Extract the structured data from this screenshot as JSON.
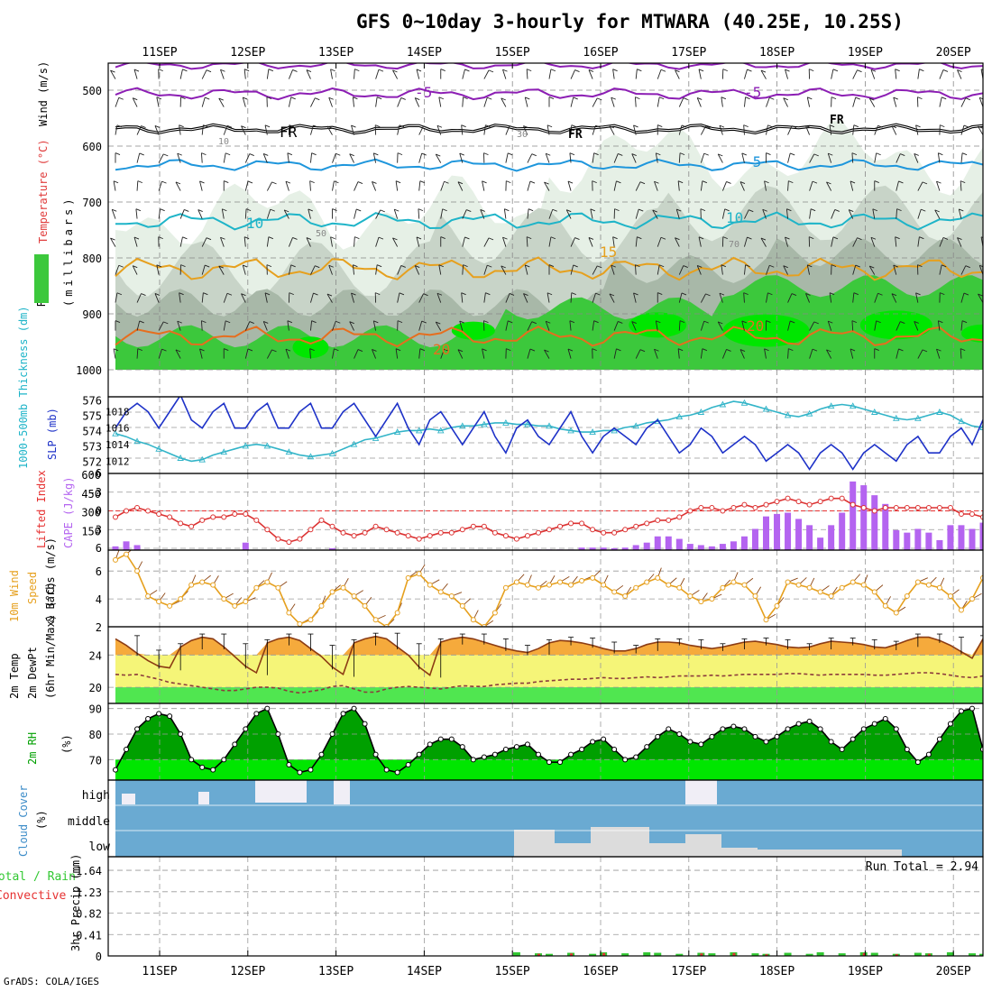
{
  "title": "GFS 0~10day 3-hourly for MTWARA (40.25E, 10.25S)",
  "footer": "GrADS: COLA/IGES",
  "chart_data": {
    "type": "meteogram",
    "x": [
      "11SEP",
      "12SEP",
      "13SEP",
      "14SEP",
      "15SEP",
      "16SEP",
      "17SEP",
      "18SEP",
      "19SEP",
      "20SEP"
    ],
    "panels": [
      {
        "id": "upper_air",
        "ylabels": [
          "RH (%)",
          "Temperature (°C)",
          "Wind (m/s)",
          "(millibars)"
        ],
        "ylim": [
          1000,
          450
        ],
        "yticks": [
          500,
          600,
          700,
          800,
          900,
          1000
        ],
        "isotherm_labels": [
          "-5",
          "FR",
          "-5",
          "10",
          "15",
          "20"
        ],
        "rh_contour_labels": [
          "10",
          "30",
          "50",
          "70"
        ],
        "colors": {
          "rh70": "#3cc83c",
          "rh90": "#00e600",
          "minus5": "#8c1eb4",
          "zero": "#000000",
          "five": "#1e96dc",
          "ten": "#1eb4c8",
          "fifteen": "#e6a01e",
          "twenty": "#e66e1e"
        }
      },
      {
        "id": "thickness_slp",
        "ylabels": [
          "1000-500mb Thickness (dm)",
          "SLP (mb)"
        ],
        "left_ylim": [
          571,
          576
        ],
        "left_yticks": [
          572,
          573,
          574,
          575,
          576
        ],
        "right_ylim": [
          1010,
          1020
        ],
        "right_yticks": [
          1012,
          1014,
          1016,
          1018
        ],
        "slp": [
          1016,
          1018,
          1019,
          1018,
          1016,
          1018,
          1020,
          1017,
          1016,
          1018,
          1019,
          1016,
          1016,
          1018,
          1019,
          1016,
          1016,
          1018,
          1019,
          1016,
          1016,
          1018,
          1019,
          1017,
          1015,
          1017,
          1019,
          1016,
          1014,
          1017,
          1018,
          1016,
          1014,
          1016,
          1018,
          1015,
          1013,
          1016,
          1017,
          1015,
          1014,
          1016,
          1018,
          1015,
          1013,
          1015,
          1016,
          1015,
          1014,
          1016,
          1017,
          1015,
          1013,
          1014,
          1016,
          1015,
          1013,
          1014,
          1015,
          1014,
          1012,
          1013,
          1014,
          1013,
          1011,
          1013,
          1014,
          1013,
          1011,
          1013,
          1014,
          1013,
          1012,
          1014,
          1015,
          1013,
          1013,
          1015,
          1016,
          1014,
          1017
        ],
        "thickness": [
          573.8,
          573.6,
          573.3,
          573.1,
          572.8,
          572.5,
          572.2,
          572.0,
          572.1,
          572.4,
          572.6,
          572.8,
          573.0,
          573.1,
          573.0,
          572.8,
          572.6,
          572.4,
          572.3,
          572.4,
          572.5,
          572.8,
          573.1,
          573.4,
          573.5,
          573.7,
          573.9,
          574.0,
          574.0,
          574.1,
          574.0,
          574.2,
          574.3,
          574.3,
          574.4,
          574.5,
          574.5,
          574.4,
          574.4,
          574.3,
          574.3,
          574.1,
          574.0,
          573.9,
          573.9,
          574.0,
          574.0,
          574.2,
          574.3,
          574.5,
          574.6,
          574.7,
          574.9,
          575.0,
          575.2,
          575.5,
          575.7,
          575.9,
          575.8,
          575.6,
          575.4,
          575.2,
          575.0,
          574.9,
          575.1,
          575.4,
          575.6,
          575.7,
          575.6,
          575.4,
          575.2,
          575.0,
          574.8,
          574.7,
          574.8,
          575.0,
          575.2,
          575.0,
          574.6,
          574.3,
          574.2
        ],
        "colors": {
          "slp": "#1e32c8",
          "thickness": "#32b4c8"
        }
      },
      {
        "id": "li_cape",
        "ylabels": [
          "Lifted Index",
          "CAPE (J/kg)"
        ],
        "left_ylim": [
          6,
          -6
        ],
        "left_yticks": [
          6,
          3,
          0,
          -3,
          -6
        ],
        "right_ylim": [
          0,
          600
        ],
        "right_yticks": [
          150,
          300,
          450,
          600
        ],
        "lifted_index": [
          1.0,
          0.0,
          -0.5,
          0.0,
          0.5,
          1.0,
          2.0,
          2.5,
          1.5,
          1.0,
          1.0,
          0.5,
          0.5,
          1.5,
          3.0,
          4.5,
          5.0,
          4.5,
          3.0,
          1.5,
          2.5,
          3.5,
          4.0,
          3.5,
          2.5,
          3.0,
          3.5,
          4.0,
          4.5,
          4.0,
          3.5,
          3.5,
          3.0,
          2.5,
          2.5,
          3.5,
          4.0,
          4.5,
          4.0,
          3.5,
          3.0,
          2.5,
          2.0,
          2.0,
          3.0,
          3.5,
          3.5,
          3.0,
          2.5,
          2.0,
          1.5,
          1.5,
          1.0,
          0.0,
          -0.5,
          -0.5,
          0.0,
          -0.5,
          -1.0,
          -0.5,
          -1.0,
          -1.5,
          -2.0,
          -1.5,
          -1.0,
          -1.5,
          -2.0,
          -2.0,
          -1.0,
          -0.5,
          0.0,
          -0.5,
          -0.5,
          -0.5,
          -0.5,
          -0.5,
          -0.5,
          -0.5,
          0.5,
          0.5,
          1.0
        ],
        "cape": [
          30,
          70,
          40,
          0,
          0,
          0,
          0,
          0,
          0,
          0,
          0,
          0,
          60,
          0,
          0,
          0,
          0,
          0,
          0,
          0,
          15,
          0,
          0,
          0,
          0,
          0,
          0,
          0,
          0,
          0,
          0,
          0,
          0,
          0,
          0,
          0,
          0,
          0,
          0,
          5,
          5,
          5,
          5,
          20,
          20,
          20,
          15,
          20,
          40,
          60,
          110,
          110,
          90,
          50,
          40,
          30,
          50,
          70,
          110,
          170,
          270,
          290,
          300,
          250,
          200,
          100,
          200,
          300,
          550,
          520,
          440,
          370,
          160,
          140,
          170,
          140,
          80,
          200,
          200,
          170,
          220
        ],
        "colors": {
          "li": "#dc3232",
          "cape": "#b464f0"
        }
      },
      {
        "id": "wind10m",
        "ylabels": [
          "10m Wind Speed",
          "& Barbs (m/s)"
        ],
        "ylim": [
          2,
          7.5
        ],
        "yticks": [
          2,
          4,
          6
        ],
        "speed": [
          6.8,
          7.2,
          6.0,
          4.2,
          3.8,
          3.5,
          4.0,
          5.0,
          5.2,
          5.0,
          4.0,
          3.5,
          3.8,
          4.8,
          5.2,
          4.8,
          3.0,
          2.2,
          2.5,
          3.5,
          4.5,
          4.8,
          4.2,
          3.5,
          2.5,
          2.0,
          3.0,
          5.5,
          5.8,
          5.0,
          4.5,
          4.2,
          3.5,
          2.5,
          2.0,
          3.0,
          4.8,
          5.2,
          5.0,
          4.8,
          5.0,
          5.2,
          5.0,
          5.3,
          5.5,
          5.0,
          4.5,
          4.2,
          4.8,
          5.2,
          5.5,
          5.0,
          4.8,
          4.2,
          3.8,
          4.0,
          4.8,
          5.2,
          5.0,
          4.2,
          2.5,
          3.5,
          5.2,
          5.0,
          4.8,
          4.5,
          4.2,
          4.8,
          5.2,
          5.0,
          4.5,
          3.5,
          3.0,
          4.2,
          5.2,
          5.0,
          4.8,
          4.2,
          3.2,
          4.0,
          5.5
        ],
        "colors": {
          "speed": "#e6a01e",
          "barb": "#8c4614"
        }
      },
      {
        "id": "temp2m",
        "ylabels": [
          "2m Temp",
          "2m DewPt",
          "(6hr Min/Max) (°C)"
        ],
        "ylim": [
          18,
          27.5
        ],
        "yticks": [
          20,
          24
        ],
        "temp": [
          26.0,
          25.2,
          24.2,
          23.3,
          22.6,
          22.4,
          25.0,
          25.8,
          26.2,
          26.0,
          25.0,
          23.8,
          22.6,
          21.8,
          25.5,
          26.0,
          26.2,
          25.8,
          24.8,
          23.8,
          22.5,
          21.6,
          25.5,
          26.0,
          26.3,
          26.0,
          25.0,
          24.0,
          22.5,
          21.5,
          25.6,
          26.0,
          26.2,
          26.0,
          25.6,
          25.2,
          24.8,
          24.5,
          24.3,
          24.8,
          25.5,
          25.8,
          25.7,
          25.5,
          25.2,
          24.8,
          24.5,
          24.5,
          24.8,
          25.3,
          25.6,
          25.6,
          25.5,
          25.2,
          25.0,
          24.8,
          25.0,
          25.3,
          25.6,
          25.7,
          25.5,
          25.3,
          25.0,
          24.9,
          25.0,
          25.4,
          25.7,
          25.6,
          25.5,
          25.3,
          25.0,
          24.9,
          25.3,
          25.8,
          26.2,
          26.2,
          25.8,
          25.2,
          24.4,
          23.6,
          26.0
        ],
        "dewpt": [
          21.6,
          21.5,
          21.6,
          21.3,
          21.0,
          20.6,
          20.4,
          20.2,
          20.0,
          19.8,
          19.6,
          19.6,
          19.8,
          20.0,
          20.0,
          19.9,
          19.5,
          19.3,
          19.5,
          19.7,
          20.1,
          20.2,
          19.8,
          19.4,
          19.4,
          19.8,
          20.0,
          20.1,
          20.0,
          19.9,
          19.8,
          20.0,
          20.2,
          20.1,
          20.1,
          20.3,
          20.4,
          20.5,
          20.5,
          20.7,
          20.8,
          20.9,
          21.0,
          21.0,
          21.1,
          21.2,
          21.1,
          21.1,
          21.2,
          21.3,
          21.2,
          21.3,
          21.4,
          21.4,
          21.4,
          21.5,
          21.4,
          21.5,
          21.6,
          21.6,
          21.6,
          21.6,
          21.7,
          21.7,
          21.6,
          21.5,
          21.6,
          21.6,
          21.6,
          21.6,
          21.5,
          21.5,
          21.6,
          21.7,
          21.8,
          21.8,
          21.7,
          21.5,
          21.3,
          21.2,
          21.4
        ],
        "colors": {
          "temp": "#8c3c14",
          "warm_fill": "#f5aa3c",
          "mid_fill": "#f5f578",
          "low_fill": "#50e650",
          "dewpt": "#8c3c3c"
        }
      },
      {
        "id": "rh2m",
        "ylabels": [
          "2m RH",
          "(%)"
        ],
        "ylim": [
          62,
          92
        ],
        "yticks": [
          70,
          80,
          90
        ],
        "rh": [
          66,
          74,
          82,
          86,
          88,
          87,
          80,
          70,
          67,
          66,
          70,
          76,
          82,
          88,
          90,
          80,
          68,
          65,
          66,
          72,
          80,
          88,
          90,
          84,
          72,
          66,
          65,
          68,
          72,
          76,
          78,
          78,
          75,
          70,
          71,
          72,
          74,
          75,
          76,
          72,
          69,
          69,
          72,
          74,
          77,
          78,
          74,
          70,
          71,
          75,
          79,
          82,
          80,
          77,
          76,
          79,
          82,
          83,
          82,
          79,
          77,
          79,
          82,
          84,
          85,
          82,
          77,
          74,
          78,
          82,
          84,
          86,
          82,
          74,
          69,
          72,
          78,
          84,
          89,
          90,
          74
        ],
        "colors": {
          "fill_dark": "#00a000",
          "fill_light": "#00e600",
          "line": "#000000"
        }
      },
      {
        "id": "cloud",
        "ylabels": [
          "Cloud Cover",
          "(%)"
        ],
        "rows": [
          "high",
          "middle",
          "low"
        ],
        "colors": {
          "background": "#6aaad2",
          "cloud": "#f0eef6",
          "low_cloud": "#dcdcdc"
        }
      },
      {
        "id": "precip",
        "ylabels": [
          "Total / Rain",
          "Convective",
          "3hr Precip (mm)"
        ],
        "ylim": [
          0,
          1.9
        ],
        "yticks": [
          0,
          0.41,
          0.82,
          1.23,
          1.64
        ],
        "run_total_label": "Run Total = 2.94",
        "colors": {
          "total": "#32c832",
          "convective": "#e63232"
        }
      }
    ]
  }
}
